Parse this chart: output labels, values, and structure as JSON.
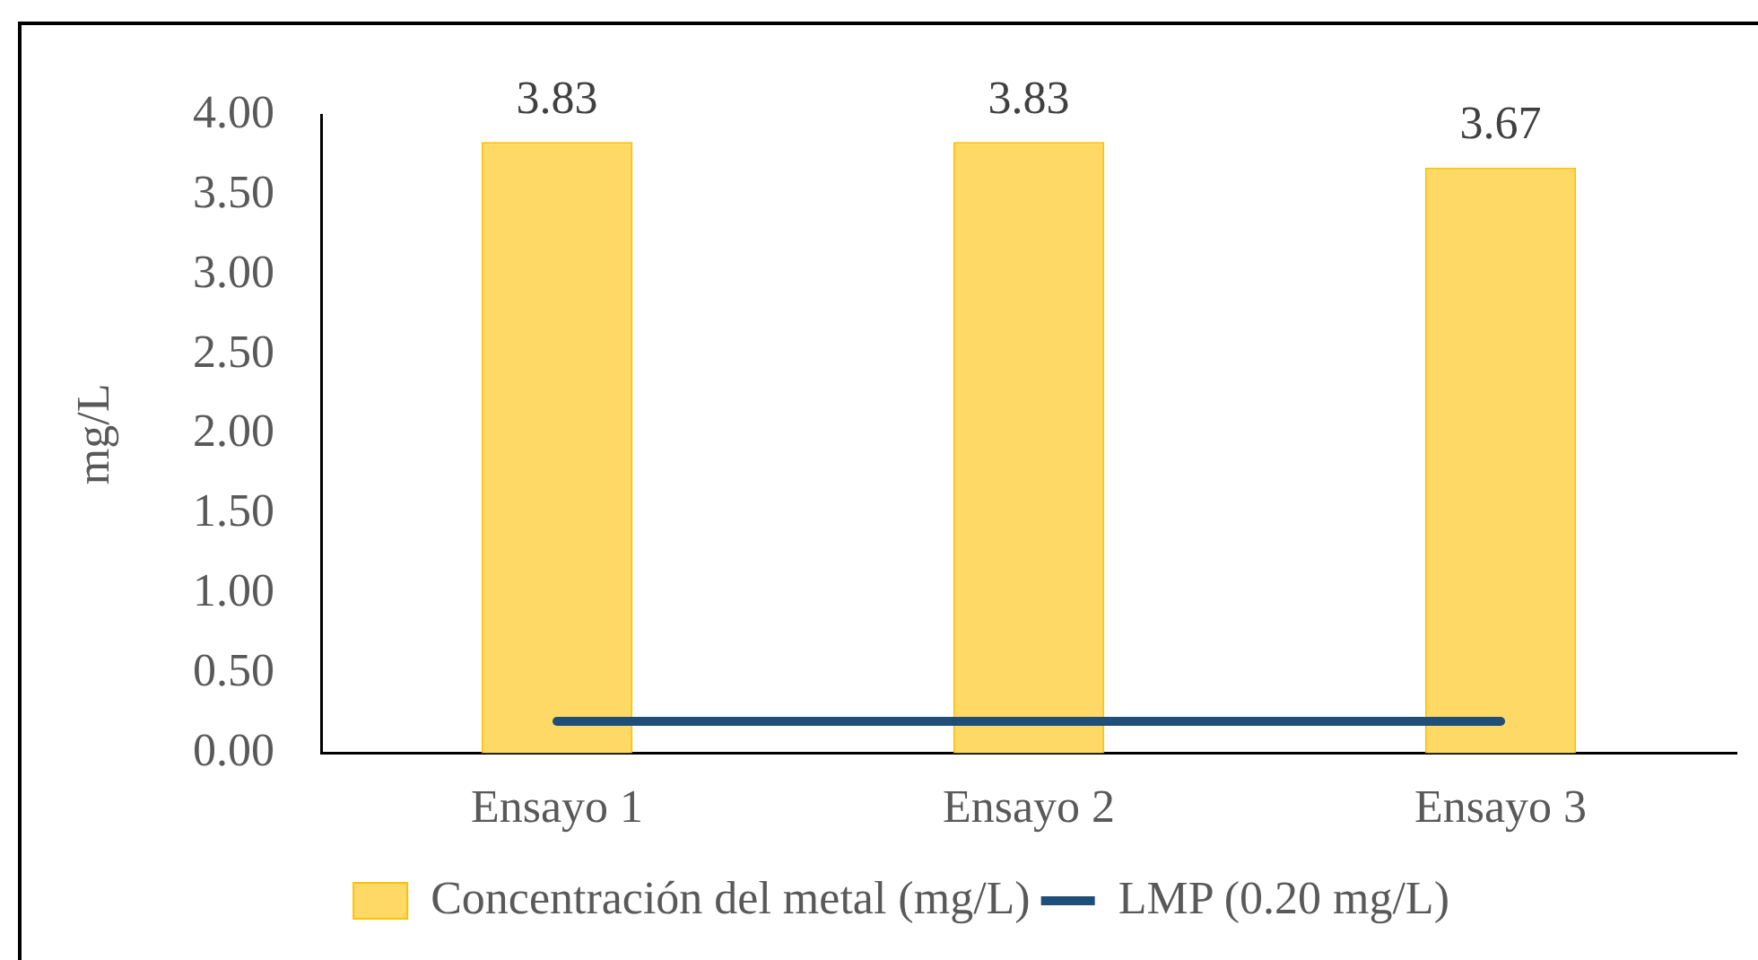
{
  "chart_data": {
    "type": "bar",
    "ylabel": "mg/L",
    "categories": [
      "Ensayo 1",
      "Ensayo 2",
      "Ensayo 3"
    ],
    "series": [
      {
        "name": "Concentración del metal (mg/L)",
        "color": "#ffd966",
        "values": [
          3.83,
          3.83,
          3.67
        ],
        "value_labels": [
          "3.83",
          "3.83",
          "3.67"
        ]
      },
      {
        "name": "LMP (0.20 mg/L)",
        "type": "line",
        "color": "#1f4e79",
        "values": [
          0.2,
          0.2,
          0.2
        ]
      }
    ],
    "ylim": [
      0,
      4
    ],
    "yticks": [
      {
        "value": 0,
        "label": "0.00"
      },
      {
        "value": 0.5,
        "label": "0.50"
      },
      {
        "value": 1,
        "label": "1.00"
      },
      {
        "value": 1.5,
        "label": "1.50"
      },
      {
        "value": 2,
        "label": "2.00"
      },
      {
        "value": 2.5,
        "label": "2.50"
      },
      {
        "value": 3,
        "label": "3.00"
      },
      {
        "value": 3.5,
        "label": "3.50"
      },
      {
        "value": 4,
        "label": "4.00"
      }
    ],
    "grid": false,
    "legend": "bottom",
    "marker": "none",
    "line_style": "solid"
  }
}
